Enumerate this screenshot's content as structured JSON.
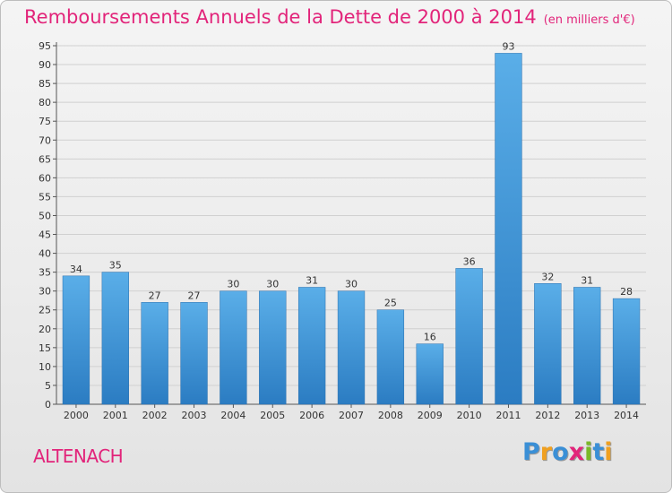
{
  "title": "Remboursements Annuels de la Dette de 2000 à 2014",
  "unit": "(en milliers d'€)",
  "commune": "ALTENACH",
  "logo": {
    "letters": [
      {
        "char": "P",
        "color": "#3a8fd6"
      },
      {
        "char": "r",
        "color": "#f0a020"
      },
      {
        "char": "o",
        "color": "#3a8fd6"
      },
      {
        "char": "x",
        "color": "#e2247a"
      },
      {
        "char": "i",
        "color": "#7ab828"
      },
      {
        "char": "t",
        "color": "#3a8fd6"
      },
      {
        "char": "i",
        "color": "#f0a020"
      }
    ]
  },
  "chart_data": {
    "type": "bar",
    "title": "Remboursements Annuels de la Dette de 2000 à 2014",
    "xlabel": "",
    "ylabel": "",
    "categories": [
      "2000",
      "2001",
      "2002",
      "2003",
      "2004",
      "2005",
      "2006",
      "2007",
      "2008",
      "2009",
      "2010",
      "2011",
      "2012",
      "2013",
      "2014"
    ],
    "values": [
      34,
      35,
      27,
      27,
      30,
      30,
      31,
      30,
      25,
      16,
      36,
      93,
      32,
      31,
      28
    ],
    "ylim": [
      0,
      95
    ],
    "yticks": [
      0,
      5,
      10,
      15,
      20,
      25,
      30,
      35,
      40,
      45,
      50,
      55,
      60,
      65,
      70,
      75,
      80,
      85,
      90,
      95
    ],
    "grid": true,
    "bar_color": "#3d94d9"
  }
}
